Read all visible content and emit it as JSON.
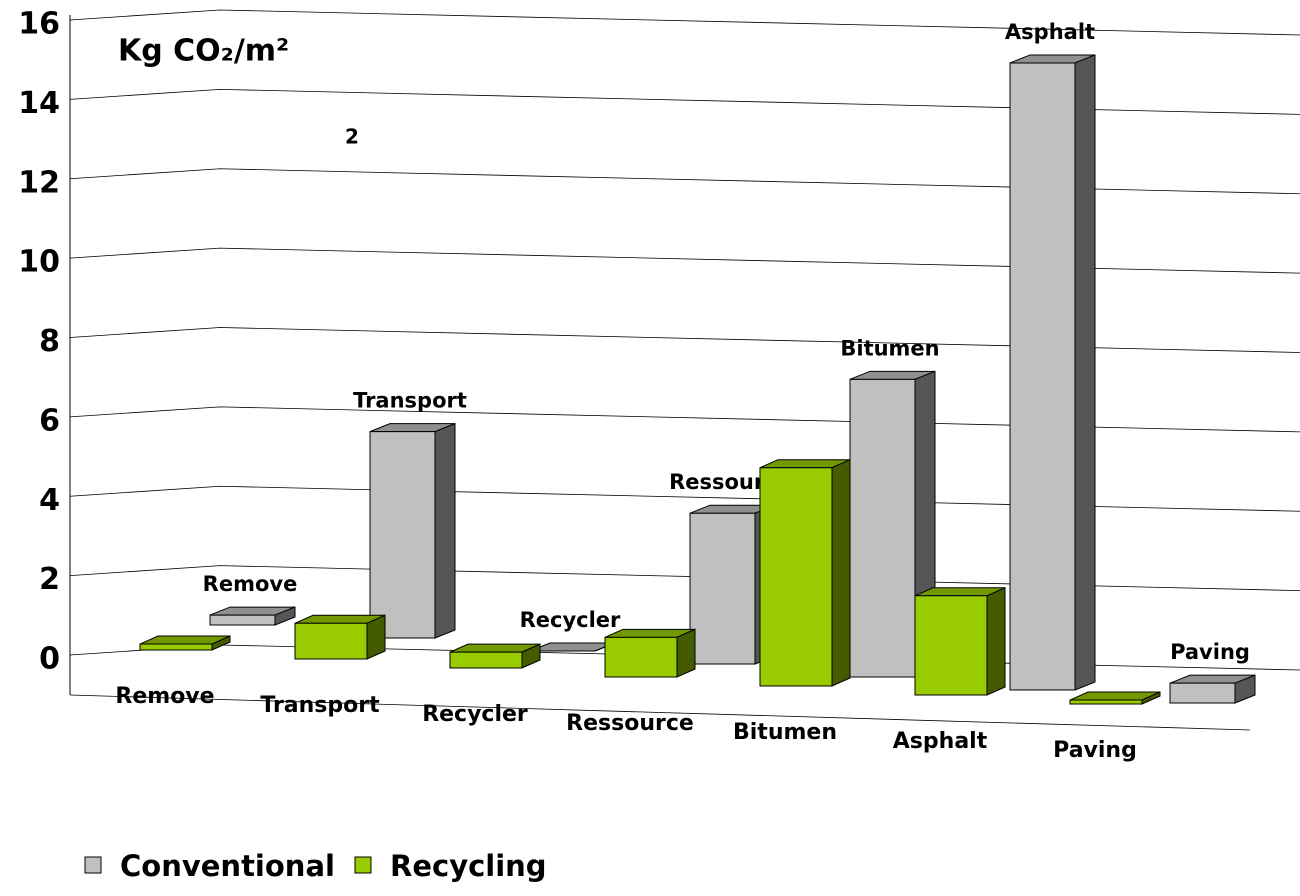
{
  "chart_data": {
    "type": "bar3d",
    "title": "Kg CO₂/m²",
    "annotation": "2",
    "categories": [
      "Remove",
      "Transport",
      "Recycler",
      "Ressource",
      "Bitumen",
      "Asphalt",
      "Paving"
    ],
    "series": [
      {
        "name": "Conventional",
        "color": "#c0c0c0",
        "values": [
          0.25,
          5.2,
          0,
          3.8,
          7.5,
          15.8,
          0.5
        ]
      },
      {
        "name": "Recycling",
        "color": "#99cc00",
        "values": [
          0.15,
          0.9,
          0.4,
          1.0,
          5.5,
          2.5,
          0.1
        ]
      }
    ],
    "ylim": [
      0,
      16
    ],
    "yticks": [
      0,
      2,
      4,
      6,
      8,
      10,
      12,
      14,
      16
    ],
    "grid": true,
    "legend": "bottom"
  }
}
